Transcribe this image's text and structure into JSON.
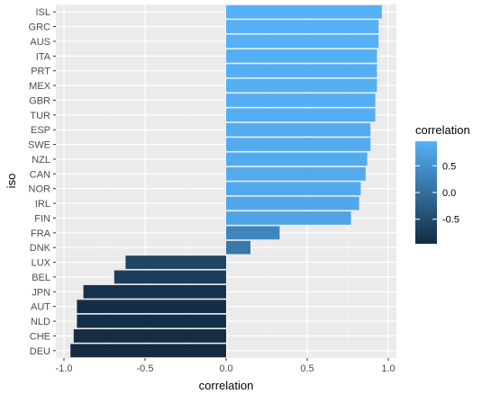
{
  "chart_data": {
    "type": "bar",
    "orientation": "horizontal",
    "xlabel": "correlation",
    "ylabel": "iso",
    "xlim": [
      -1.05,
      1.05
    ],
    "x_ticks": [
      -1.0,
      -0.5,
      0.0,
      0.5,
      1.0
    ],
    "x_tick_labels": [
      "-1.0",
      "-0.5",
      "0.0",
      "0.5",
      "1.0"
    ],
    "grid": true,
    "categories": [
      "ISL",
      "GRC",
      "AUS",
      "ITA",
      "PRT",
      "MEX",
      "GBR",
      "TUR",
      "ESP",
      "SWE",
      "NZL",
      "CAN",
      "NOR",
      "IRL",
      "FIN",
      "FRA",
      "DNK",
      "LUX",
      "BEL",
      "JPN",
      "AUT",
      "NLD",
      "CHE",
      "DEU"
    ],
    "values": [
      0.96,
      0.94,
      0.94,
      0.93,
      0.93,
      0.93,
      0.92,
      0.92,
      0.89,
      0.89,
      0.87,
      0.86,
      0.83,
      0.82,
      0.77,
      0.33,
      0.15,
      -0.62,
      -0.69,
      -0.88,
      -0.92,
      -0.92,
      -0.94,
      -0.96
    ],
    "legend": {
      "title": "correlation",
      "position": "right",
      "ticks": [
        0.5,
        0.0,
        -0.5
      ],
      "tick_labels": [
        "0.5",
        "0.0",
        "-0.5"
      ],
      "color_low": "#132B43",
      "color_high": "#56B1F7",
      "range": [
        -0.96,
        0.96
      ]
    },
    "colors": {
      "panel_background": "#EBEBEB",
      "grid_major": "#FFFFFF",
      "grid_minor": "#F5F5F5"
    }
  }
}
